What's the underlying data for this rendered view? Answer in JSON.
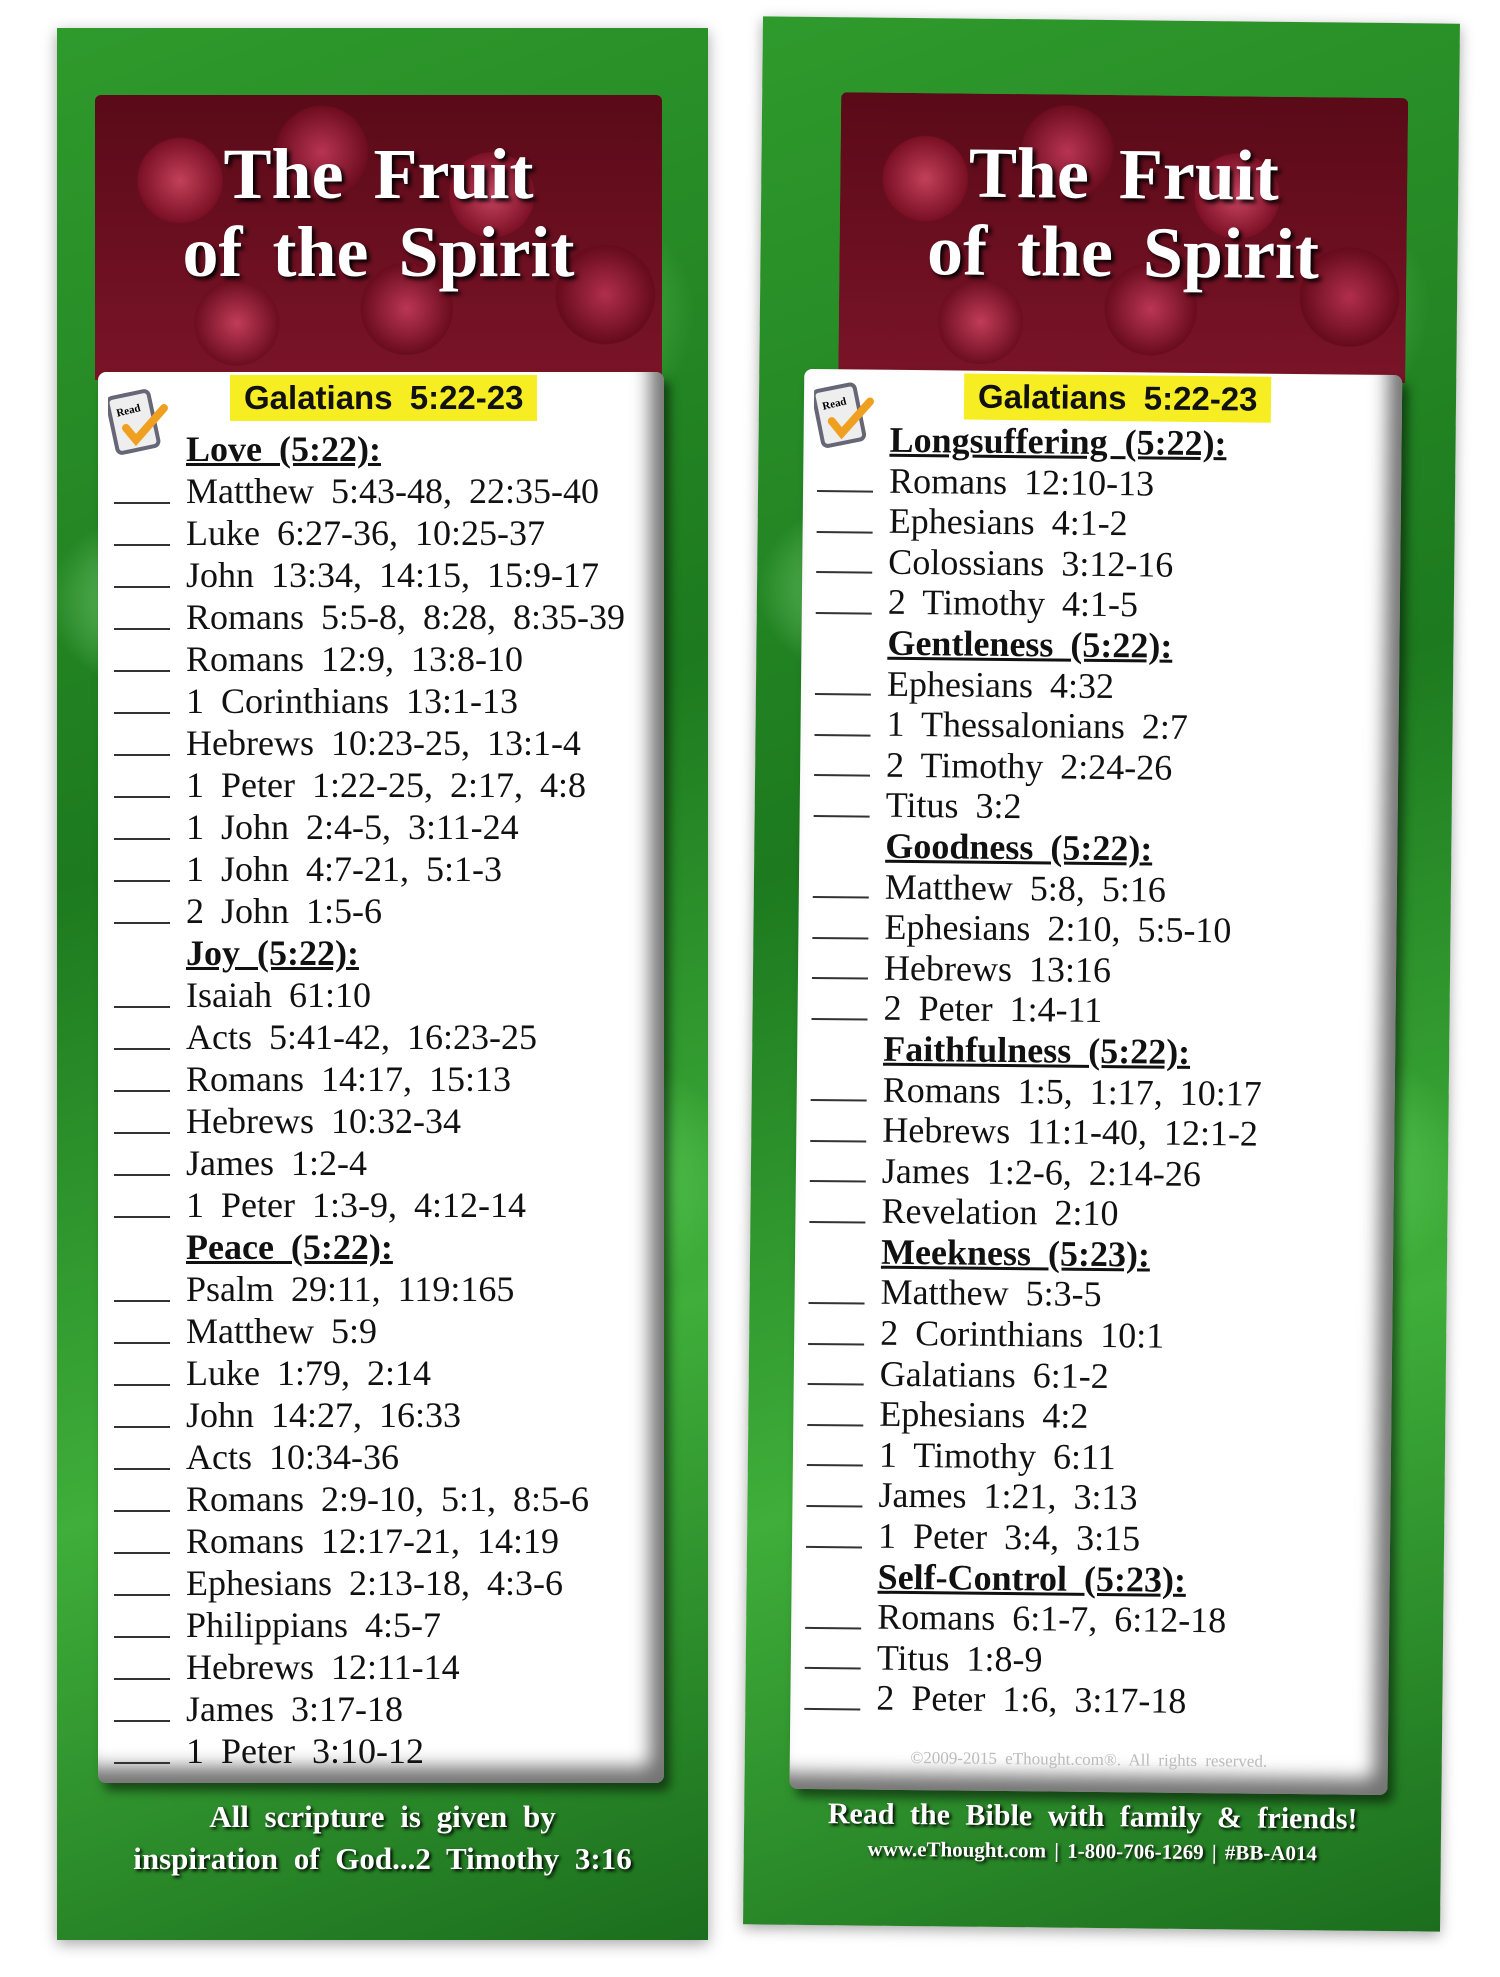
{
  "title_line1": "The Fruit",
  "title_line2": "of the Spirit",
  "verse": "Galatians 5:22-23",
  "read_icon_label": "Read",
  "left": {
    "sections": [
      {
        "heading": "Love (5:22):",
        "entries": [
          "Matthew 5:43-48, 22:35-40",
          "Luke 6:27-36, 10:25-37",
          "John 13:34, 14:15, 15:9-17",
          "Romans 5:5-8, 8:28, 8:35-39",
          "Romans 12:9, 13:8-10",
          "1 Corinthians 13:1-13",
          "Hebrews 10:23-25, 13:1-4",
          "1 Peter 1:22-25, 2:17, 4:8",
          "1 John 2:4-5, 3:11-24",
          "1 John 4:7-21, 5:1-3",
          "2 John 1:5-6"
        ]
      },
      {
        "heading": "Joy (5:22):",
        "entries": [
          "Isaiah 61:10",
          "Acts 5:41-42, 16:23-25",
          "Romans 14:17, 15:13",
          "Hebrews 10:32-34",
          "James 1:2-4",
          "1 Peter 1:3-9, 4:12-14"
        ]
      },
      {
        "heading": "Peace (5:22):",
        "entries": [
          "Psalm 29:11, 119:165",
          "Matthew 5:9",
          "Luke 1:79, 2:14",
          "John 14:27, 16:33",
          "Acts 10:34-36",
          "Romans 2:9-10, 5:1, 8:5-6",
          "Romans 12:17-21, 14:19",
          "Ephesians 2:13-18, 4:3-6",
          "Philippians 4:5-7",
          "Hebrews 12:11-14",
          "James 3:17-18",
          "1 Peter 3:10-12"
        ]
      }
    ],
    "footer_line1": "All scripture is given by",
    "footer_line2": "inspiration of God...2 Timothy 3:16"
  },
  "right": {
    "sections": [
      {
        "heading": "Longsuffering (5:22):",
        "entries": [
          "Romans 12:10-13",
          "Ephesians 4:1-2",
          "Colossians 3:12-16",
          "2 Timothy 4:1-5"
        ]
      },
      {
        "heading": "Gentleness (5:22):",
        "entries": [
          "Ephesians 4:32",
          "1 Thessalonians 2:7",
          "2 Timothy 2:24-26",
          "Titus 3:2"
        ]
      },
      {
        "heading": "Goodness (5:22):",
        "entries": [
          "Matthew 5:8, 5:16",
          "Ephesians 2:10, 5:5-10",
          "Hebrews 13:16",
          "2 Peter 1:4-11"
        ]
      },
      {
        "heading": "Faithfulness (5:22):",
        "entries": [
          "Romans 1:5, 1:17, 10:17",
          "Hebrews 11:1-40, 12:1-2",
          "James 1:2-6, 2:14-26",
          "Revelation 2:10"
        ]
      },
      {
        "heading": "Meekness (5:23):",
        "entries": [
          "Matthew 5:3-5",
          "2 Corinthians 10:1",
          "Galatians 6:1-2",
          "Ephesians 4:2",
          "1 Timothy 6:11",
          "James 1:21, 3:13",
          "1 Peter 3:4, 3:15"
        ]
      },
      {
        "heading": "Self-Control (5:23):",
        "entries": [
          "Romans 6:1-7, 6:12-18",
          "Titus 1:8-9",
          "2 Peter 1:6, 3:17-18"
        ]
      }
    ],
    "copyright": "©2009-2015 eThought.com®. All rights reserved.",
    "footer_line1": "Read the Bible with family & friends!",
    "footer_line2": "www.eThought.com | 1-800-706-1269 | #BB-A014"
  },
  "colors": {
    "verse_highlight": "#f6ee22",
    "background_green": "#2f9a2c",
    "header_red": "#7a1428"
  }
}
